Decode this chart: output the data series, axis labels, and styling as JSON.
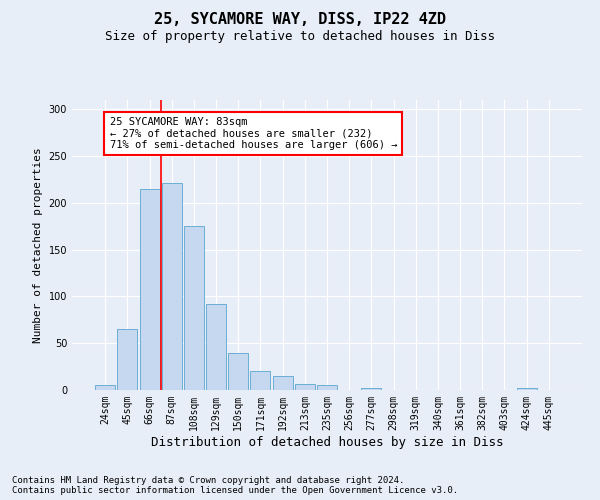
{
  "title": "25, SYCAMORE WAY, DISS, IP22 4ZD",
  "subtitle": "Size of property relative to detached houses in Diss",
  "xlabel": "Distribution of detached houses by size in Diss",
  "ylabel": "Number of detached properties",
  "bin_labels": [
    "24sqm",
    "45sqm",
    "66sqm",
    "87sqm",
    "108sqm",
    "129sqm",
    "150sqm",
    "171sqm",
    "192sqm",
    "213sqm",
    "235sqm",
    "256sqm",
    "277sqm",
    "298sqm",
    "319sqm",
    "340sqm",
    "361sqm",
    "382sqm",
    "403sqm",
    "424sqm",
    "445sqm"
  ],
  "bar_heights": [
    5,
    65,
    215,
    221,
    175,
    92,
    40,
    20,
    15,
    6,
    5,
    0,
    2,
    0,
    0,
    0,
    0,
    0,
    0,
    2,
    0
  ],
  "bar_color": "#c5d8f0",
  "bar_edgecolor": "#6baed6",
  "ylim": [
    0,
    310
  ],
  "yticks": [
    0,
    50,
    100,
    150,
    200,
    250,
    300
  ],
  "red_line_index": 3,
  "annotation_text": "25 SYCAMORE WAY: 83sqm\n← 27% of detached houses are smaller (232)\n71% of semi-detached houses are larger (606) →",
  "footer_line1": "Contains HM Land Registry data © Crown copyright and database right 2024.",
  "footer_line2": "Contains public sector information licensed under the Open Government Licence v3.0.",
  "background_color": "#e8eef8",
  "plot_bg_color": "#e8eef8",
  "grid_color": "#ffffff",
  "title_fontsize": 11,
  "subtitle_fontsize": 9,
  "xlabel_fontsize": 9,
  "ylabel_fontsize": 8,
  "tick_fontsize": 7,
  "annotation_fontsize": 7.5,
  "footer_fontsize": 6.5
}
